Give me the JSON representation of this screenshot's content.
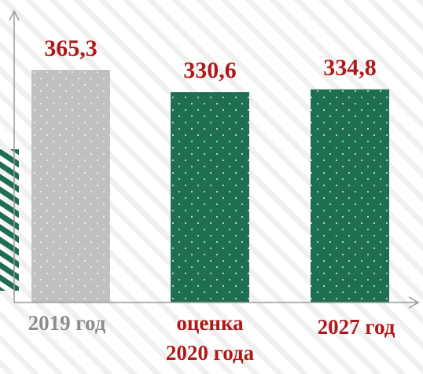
{
  "chart_data": {
    "type": "bar",
    "categories": [
      "2019 год",
      [
        "оценка",
        "2020 года"
      ],
      "2027 год"
    ],
    "values": [
      365.3,
      330.6,
      334.8
    ],
    "value_labels": [
      "365,3",
      "330,6",
      "334,8"
    ],
    "ylim": [
      0,
      365.3
    ],
    "grid": false,
    "legend": "none",
    "bar_colors": [
      "#c0c0c0",
      "#1e6e50",
      "#1e6e50"
    ],
    "label_colors": {
      "value": "#b01818",
      "category": [
        "#8c8c8c",
        "#b01818",
        "#b01818"
      ]
    },
    "axis_color": "#9a9a9a",
    "decoration": {
      "background_hatch": "#f0f0f0",
      "side_stripe": "#1e6e50"
    }
  }
}
